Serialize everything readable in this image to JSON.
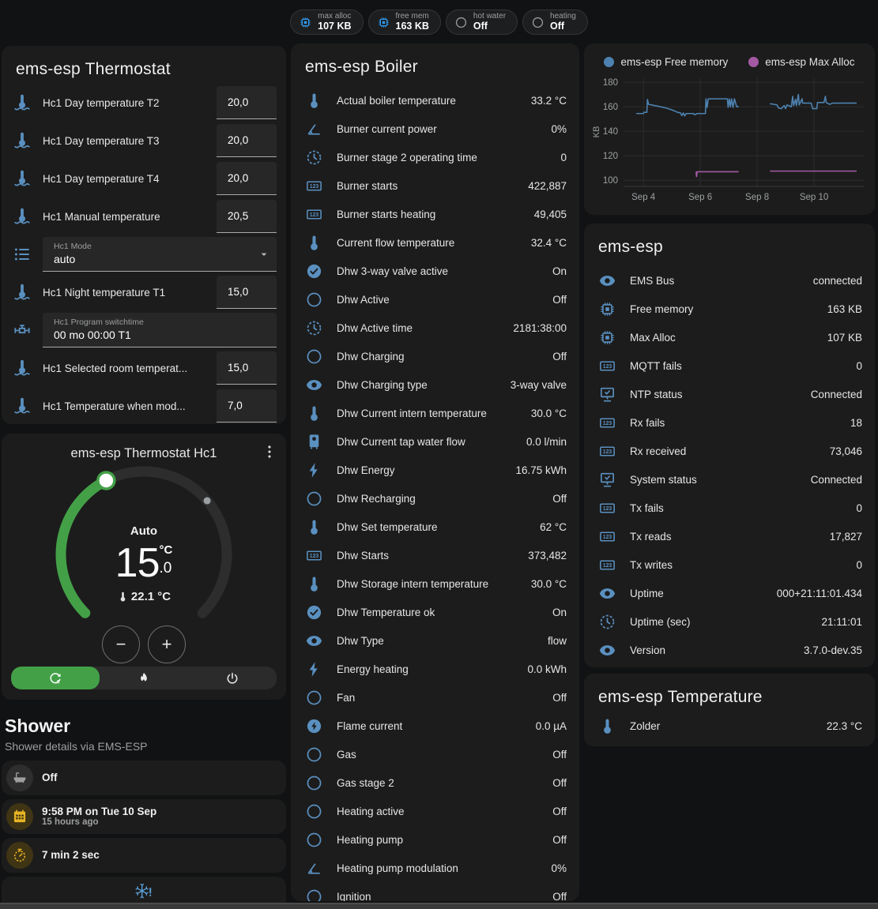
{
  "colors": {
    "icon_blue": "#5a90c0",
    "chip_blue": "#2f9bf0",
    "gray_icon": "#9e9e9e",
    "amber": "#e8b424",
    "amber_bg": "#3f3414",
    "gray_bg": "#2e2e2e",
    "green": "#43a047",
    "chart_blue": "#4d82b0",
    "chart_purple": "#a35aa3",
    "snowflake_blue": "#5ba0d9"
  },
  "header_chips": [
    {
      "icon": "chip-icon",
      "icon_color": "#2f9bf0",
      "label": "max alloc",
      "value": "107 KB"
    },
    {
      "icon": "chip-icon",
      "icon_color": "#2f9bf0",
      "label": "free mem",
      "value": "163 KB"
    },
    {
      "icon": "circle-icon",
      "icon_color": "#9e9e9e",
      "label": "hot water",
      "value": "Off"
    },
    {
      "icon": "circle-icon",
      "icon_color": "#9e9e9e",
      "label": "heating",
      "value": "Off"
    }
  ],
  "thermostat_card": {
    "title": "ems-esp Thermostat",
    "rows": [
      {
        "type": "number",
        "icon": "thermometer-water-icon",
        "label": "Hc1 Day temperature T2",
        "value": "20,0"
      },
      {
        "type": "number",
        "icon": "thermometer-water-icon",
        "label": "Hc1 Day temperature T3",
        "value": "20,0"
      },
      {
        "type": "number",
        "icon": "thermometer-water-icon",
        "label": "Hc1 Day temperature T4",
        "value": "20,0"
      },
      {
        "type": "number",
        "icon": "thermometer-water-icon",
        "label": "Hc1 Manual temperature",
        "value": "20,5"
      },
      {
        "type": "select",
        "icon": "list-icon",
        "label": "Hc1 Mode",
        "value": "auto"
      },
      {
        "type": "number",
        "icon": "thermometer-water-icon",
        "label": "Hc1 Night temperature T1",
        "value": "15,0"
      },
      {
        "type": "text",
        "icon": "valve-icon",
        "label": "Hc1 Program switchtime",
        "value": "00 mo 00:00 T1"
      },
      {
        "type": "number",
        "icon": "thermometer-water-icon",
        "label": "Hc1 Selected room temperat...",
        "value": "15,0"
      },
      {
        "type": "number",
        "icon": "thermometer-water-icon",
        "label": "Hc1 Temperature when mod...",
        "value": "7,0"
      }
    ]
  },
  "dial_card": {
    "title": "ems-esp Thermostat Hc1",
    "mode": "Auto",
    "target_int": "15",
    "target_dec": "0",
    "unit": "°C",
    "current_label": "22.1 °C",
    "target": 15,
    "current": 22.1,
    "min": 5,
    "max": 30,
    "minus": "−",
    "plus": "+",
    "modes": [
      {
        "icon": "auto-mode-icon",
        "active": true
      },
      {
        "icon": "flame-icon",
        "active": false
      },
      {
        "icon": "power-icon",
        "active": false
      }
    ]
  },
  "shower": {
    "title": "Shower",
    "subtitle": "Shower details via EMS-ESP",
    "tiles": [
      {
        "icon": "bathtub-icon",
        "icon_color": "#9e9e9e",
        "bg": "#2e2e2e",
        "primary": "Off",
        "secondary": ""
      },
      {
        "icon": "calendar-icon",
        "icon_color": "#e8b424",
        "bg": "#3f3414",
        "primary": "9:58 PM on Tue 10 Sep",
        "secondary": "15 hours ago"
      },
      {
        "icon": "timer-icon",
        "icon_color": "#e8b424",
        "bg": "#3f3414",
        "primary": "7 min 2 sec",
        "secondary": ""
      }
    ],
    "partial_tile_icon": "snowflake-alert-icon"
  },
  "boiler_card": {
    "title": "ems-esp Boiler",
    "rows": [
      {
        "icon": "thermometer-icon",
        "label": "Actual boiler temperature",
        "value": "33.2 °C"
      },
      {
        "icon": "angle-icon",
        "label": "Burner current power",
        "value": "0%"
      },
      {
        "icon": "clock-icon",
        "label": "Burner stage 2 operating time",
        "value": "0"
      },
      {
        "icon": "counter-icon",
        "label": "Burner starts",
        "value": "422,887"
      },
      {
        "icon": "counter-icon",
        "label": "Burner starts heating",
        "value": "49,405"
      },
      {
        "icon": "thermometer-icon",
        "label": "Current flow temperature",
        "value": "32.4 °C"
      },
      {
        "icon": "check-circle-icon",
        "label": "Dhw 3-way valve active",
        "value": "On"
      },
      {
        "icon": "circle-icon",
        "label": "Dhw Active",
        "value": "Off"
      },
      {
        "icon": "clock-icon",
        "label": "Dhw Active time",
        "value": "2181:38:00"
      },
      {
        "icon": "circle-icon",
        "label": "Dhw Charging",
        "value": "Off"
      },
      {
        "icon": "eye-icon",
        "label": "Dhw Charging type",
        "value": "3-way valve"
      },
      {
        "icon": "thermometer-icon",
        "label": "Dhw Current intern temperature",
        "value": "30.0 °C"
      },
      {
        "icon": "water-boiler-icon",
        "label": "Dhw Current tap water flow",
        "value": "0.0 l/min"
      },
      {
        "icon": "lightning-icon",
        "label": "Dhw Energy",
        "value": "16.75 kWh"
      },
      {
        "icon": "circle-icon",
        "label": "Dhw Recharging",
        "value": "Off"
      },
      {
        "icon": "thermometer-icon",
        "label": "Dhw Set temperature",
        "value": "62 °C"
      },
      {
        "icon": "counter-icon",
        "label": "Dhw Starts",
        "value": "373,482"
      },
      {
        "icon": "thermometer-icon",
        "label": "Dhw Storage intern temperature",
        "value": "30.0 °C"
      },
      {
        "icon": "check-circle-icon",
        "label": "Dhw Temperature ok",
        "value": "On"
      },
      {
        "icon": "eye-icon",
        "label": "Dhw Type",
        "value": "flow"
      },
      {
        "icon": "lightning-icon",
        "label": "Energy heating",
        "value": "0.0 kWh"
      },
      {
        "icon": "circle-icon",
        "label": "Fan",
        "value": "Off"
      },
      {
        "icon": "flash-circle-icon",
        "label": "Flame current",
        "value": "0.0 µA"
      },
      {
        "icon": "circle-icon",
        "label": "Gas",
        "value": "Off"
      },
      {
        "icon": "circle-icon",
        "label": "Gas stage 2",
        "value": "Off"
      },
      {
        "icon": "circle-icon",
        "label": "Heating active",
        "value": "Off"
      },
      {
        "icon": "circle-icon",
        "label": "Heating pump",
        "value": "Off"
      },
      {
        "icon": "angle-icon",
        "label": "Heating pump modulation",
        "value": "0%"
      },
      {
        "icon": "circle-icon",
        "label": "Ignition",
        "value": "Off"
      }
    ]
  },
  "chart_data": {
    "type": "line",
    "ylabel": "KB",
    "yticks": [
      100,
      120,
      140,
      160,
      180
    ],
    "ylim": [
      95,
      184
    ],
    "xlim": [
      3.3,
      11.75
    ],
    "xticks": [
      {
        "pos": 4,
        "label": "Sep 4"
      },
      {
        "pos": 6,
        "label": "Sep 6"
      },
      {
        "pos": 8,
        "label": "Sep 8"
      },
      {
        "pos": 10,
        "label": "Sep 10"
      }
    ],
    "grid": true,
    "legend_position": "top",
    "series": [
      {
        "name": "ems-esp Free memory",
        "color": "#4d82b0",
        "segments": [
          [
            [
              3.75,
              154.5
            ],
            [
              4.0,
              154.5
            ],
            [
              4.02,
              155.5
            ],
            [
              4.12,
              155.5
            ],
            [
              4.14,
              166
            ],
            [
              4.18,
              162
            ],
            [
              4.4,
              161
            ],
            [
              4.6,
              160
            ],
            [
              4.8,
              159
            ],
            [
              5.0,
              157.5
            ],
            [
              5.1,
              156.5
            ],
            [
              5.2,
              155.5
            ],
            [
              5.3,
              155
            ],
            [
              5.35,
              152.8
            ],
            [
              5.4,
              155
            ],
            [
              5.45,
              152.5
            ],
            [
              5.5,
              154.5
            ],
            [
              5.75,
              154.5
            ],
            [
              5.8,
              153.5
            ],
            [
              5.9,
              154.5
            ],
            [
              6.18,
              154.5
            ],
            [
              6.2,
              166.5
            ],
            [
              6.24,
              159.5
            ],
            [
              6.28,
              166.5
            ],
            [
              6.95,
              166.5
            ],
            [
              6.98,
              159.5
            ],
            [
              7.02,
              166.5
            ],
            [
              7.06,
              160
            ],
            [
              7.1,
              166.5
            ],
            [
              7.15,
              159.5
            ],
            [
              7.2,
              166.5
            ],
            [
              7.28,
              160
            ],
            [
              7.35,
              160
            ]
          ],
          [
            [
              8.45,
              162.5
            ],
            [
              8.6,
              162
            ],
            [
              8.7,
              161.5
            ],
            [
              8.75,
              159
            ],
            [
              8.85,
              158.5
            ],
            [
              8.95,
              161
            ],
            [
              9.0,
              158.5
            ],
            [
              9.05,
              161.5
            ],
            [
              9.2,
              160
            ],
            [
              9.25,
              168.5
            ],
            [
              9.28,
              161
            ],
            [
              9.35,
              166
            ],
            [
              9.38,
              161
            ],
            [
              9.45,
              170
            ],
            [
              9.48,
              161.5
            ],
            [
              9.58,
              166.5
            ],
            [
              9.6,
              163
            ],
            [
              9.75,
              163
            ],
            [
              9.9,
              163
            ],
            [
              9.95,
              158.5
            ],
            [
              10.1,
              158.5
            ],
            [
              10.12,
              163.5
            ],
            [
              10.35,
              163.5
            ],
            [
              10.4,
              168.5
            ],
            [
              10.43,
              163.5
            ],
            [
              10.55,
              162
            ],
            [
              10.65,
              163
            ],
            [
              11.5,
              163
            ]
          ]
        ]
      },
      {
        "name": "ems-esp Max Alloc",
        "color": "#a35aa3",
        "segments": [
          [
            [
              5.85,
              107
            ],
            [
              5.87,
              103
            ],
            [
              5.89,
              107
            ],
            [
              7.35,
              107
            ]
          ],
          [
            [
              8.45,
              107.5
            ],
            [
              11.5,
              107.5
            ]
          ]
        ]
      }
    ]
  },
  "emsesp_card": {
    "title": "ems-esp",
    "rows": [
      {
        "icon": "eye-icon",
        "label": "EMS Bus",
        "value": "connected"
      },
      {
        "icon": "chip-icon",
        "label": "Free memory",
        "value": "163 KB"
      },
      {
        "icon": "chip-icon",
        "label": "Max Alloc",
        "value": "107 KB"
      },
      {
        "icon": "counter-icon",
        "label": "MQTT fails",
        "value": "0"
      },
      {
        "icon": "network-icon",
        "label": "NTP status",
        "value": "Connected"
      },
      {
        "icon": "counter-icon",
        "label": "Rx fails",
        "value": "18"
      },
      {
        "icon": "counter-icon",
        "label": "Rx received",
        "value": "73,046"
      },
      {
        "icon": "network-icon",
        "label": "System status",
        "value": "Connected"
      },
      {
        "icon": "counter-icon",
        "label": "Tx fails",
        "value": "0"
      },
      {
        "icon": "counter-icon",
        "label": "Tx reads",
        "value": "17,827"
      },
      {
        "icon": "counter-icon",
        "label": "Tx writes",
        "value": "0"
      },
      {
        "icon": "eye-icon",
        "label": "Uptime",
        "value": "000+21:11:01.434"
      },
      {
        "icon": "clock-icon",
        "label": "Uptime (sec)",
        "value": "21:11:01"
      },
      {
        "icon": "eye-icon",
        "label": "Version",
        "value": "3.7.0-dev.35"
      }
    ]
  },
  "temperature_card": {
    "title": "ems-esp Temperature",
    "rows": [
      {
        "icon": "thermometer-icon",
        "label": "Zolder",
        "value": "22.3 °C"
      }
    ]
  }
}
